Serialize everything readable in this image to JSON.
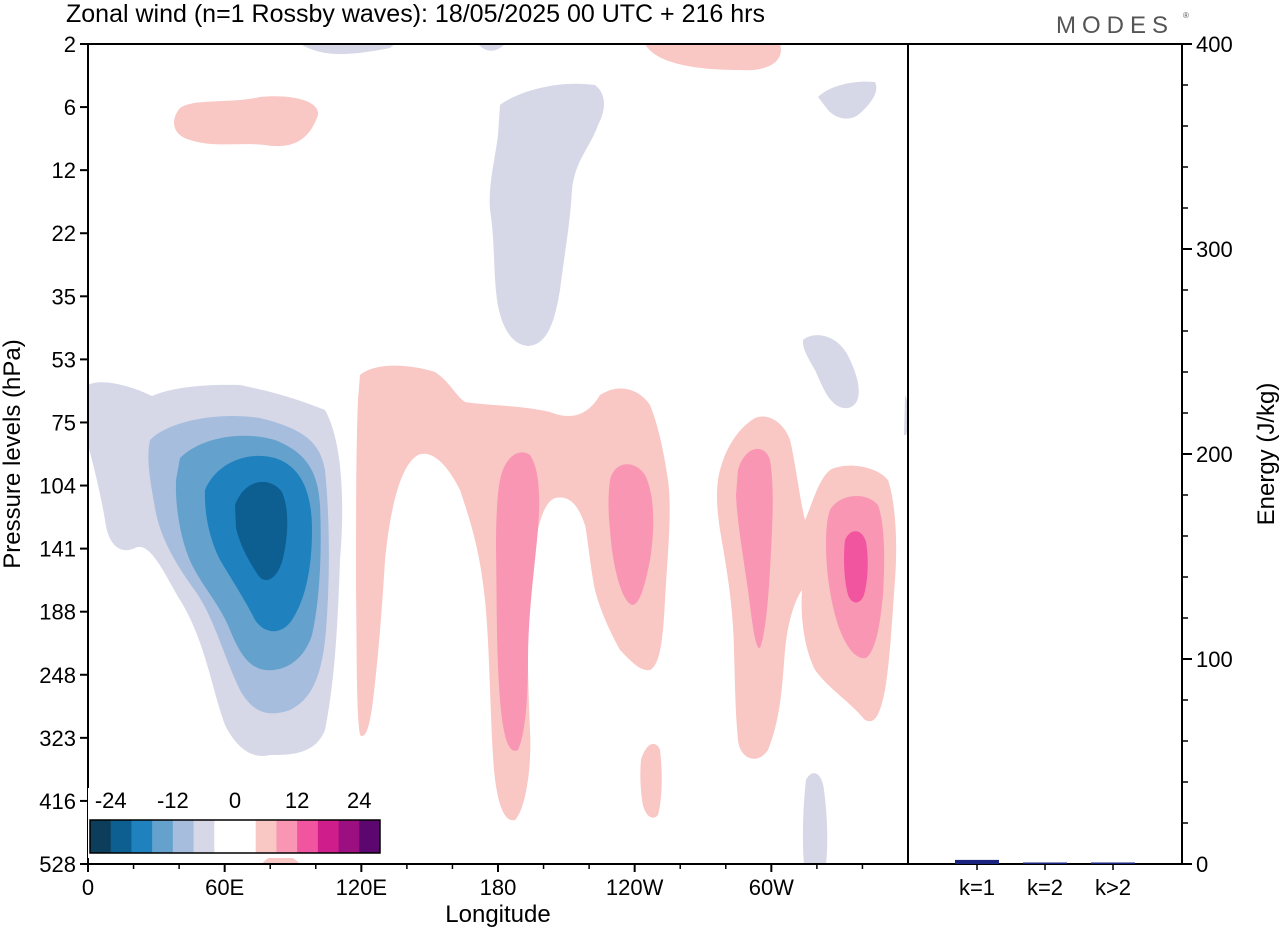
{
  "chart_data": {
    "type": "heatmap",
    "title": "Zonal wind (n=1 Rossby waves):  18/05/2025  00 UTC  + 216 hrs",
    "brand": "MODES",
    "xlabel": "Longitude",
    "ylabel": "Pressure levels (hPa)",
    "x_ticks": [
      "0",
      "60E",
      "120E",
      "180",
      "120W",
      "60W"
    ],
    "y_ticks": [
      "2",
      "6",
      "12",
      "22",
      "35",
      "53",
      "75",
      "104",
      "141",
      "188",
      "248",
      "323",
      "416",
      "528"
    ],
    "colorbar": {
      "labels": [
        "-24",
        "-12",
        "0",
        "12",
        "24"
      ],
      "colors": [
        "#0c3d5b",
        "#0d5f92",
        "#1f82bf",
        "#64a2cd",
        "#a7bddd",
        "#d6d8e8",
        "#ffffff",
        "#ffffff",
        "#f9c7c4",
        "#f996b4",
        "#f2559f",
        "#cf1d8c",
        "#9b0f81",
        "#5c0670"
      ]
    },
    "features": [
      {
        "sign": "negative",
        "lon": 75,
        "level": "141",
        "peak": -30
      },
      {
        "sign": "positive",
        "lon": 187,
        "level": "141",
        "peak": 12
      },
      {
        "sign": "positive",
        "lon": 240,
        "level": "141",
        "peak": 12
      },
      {
        "sign": "positive",
        "lon": 302,
        "level": "141",
        "peak": 12
      },
      {
        "sign": "positive",
        "lon": 340,
        "level": "141",
        "peak": 18
      },
      {
        "sign": "negative",
        "lon": 190,
        "level": "12",
        "peak": -6
      }
    ],
    "energy": {
      "ylabel": "Energy (J/kg)",
      "ylim": [
        0,
        400
      ],
      "y_ticks": [
        "0",
        "100",
        "200",
        "300",
        "400"
      ],
      "categories": [
        "k=1",
        "k=2",
        "k>2"
      ],
      "values": [
        2,
        0.5,
        0.5
      ],
      "bar_color": "#1a237e"
    }
  }
}
